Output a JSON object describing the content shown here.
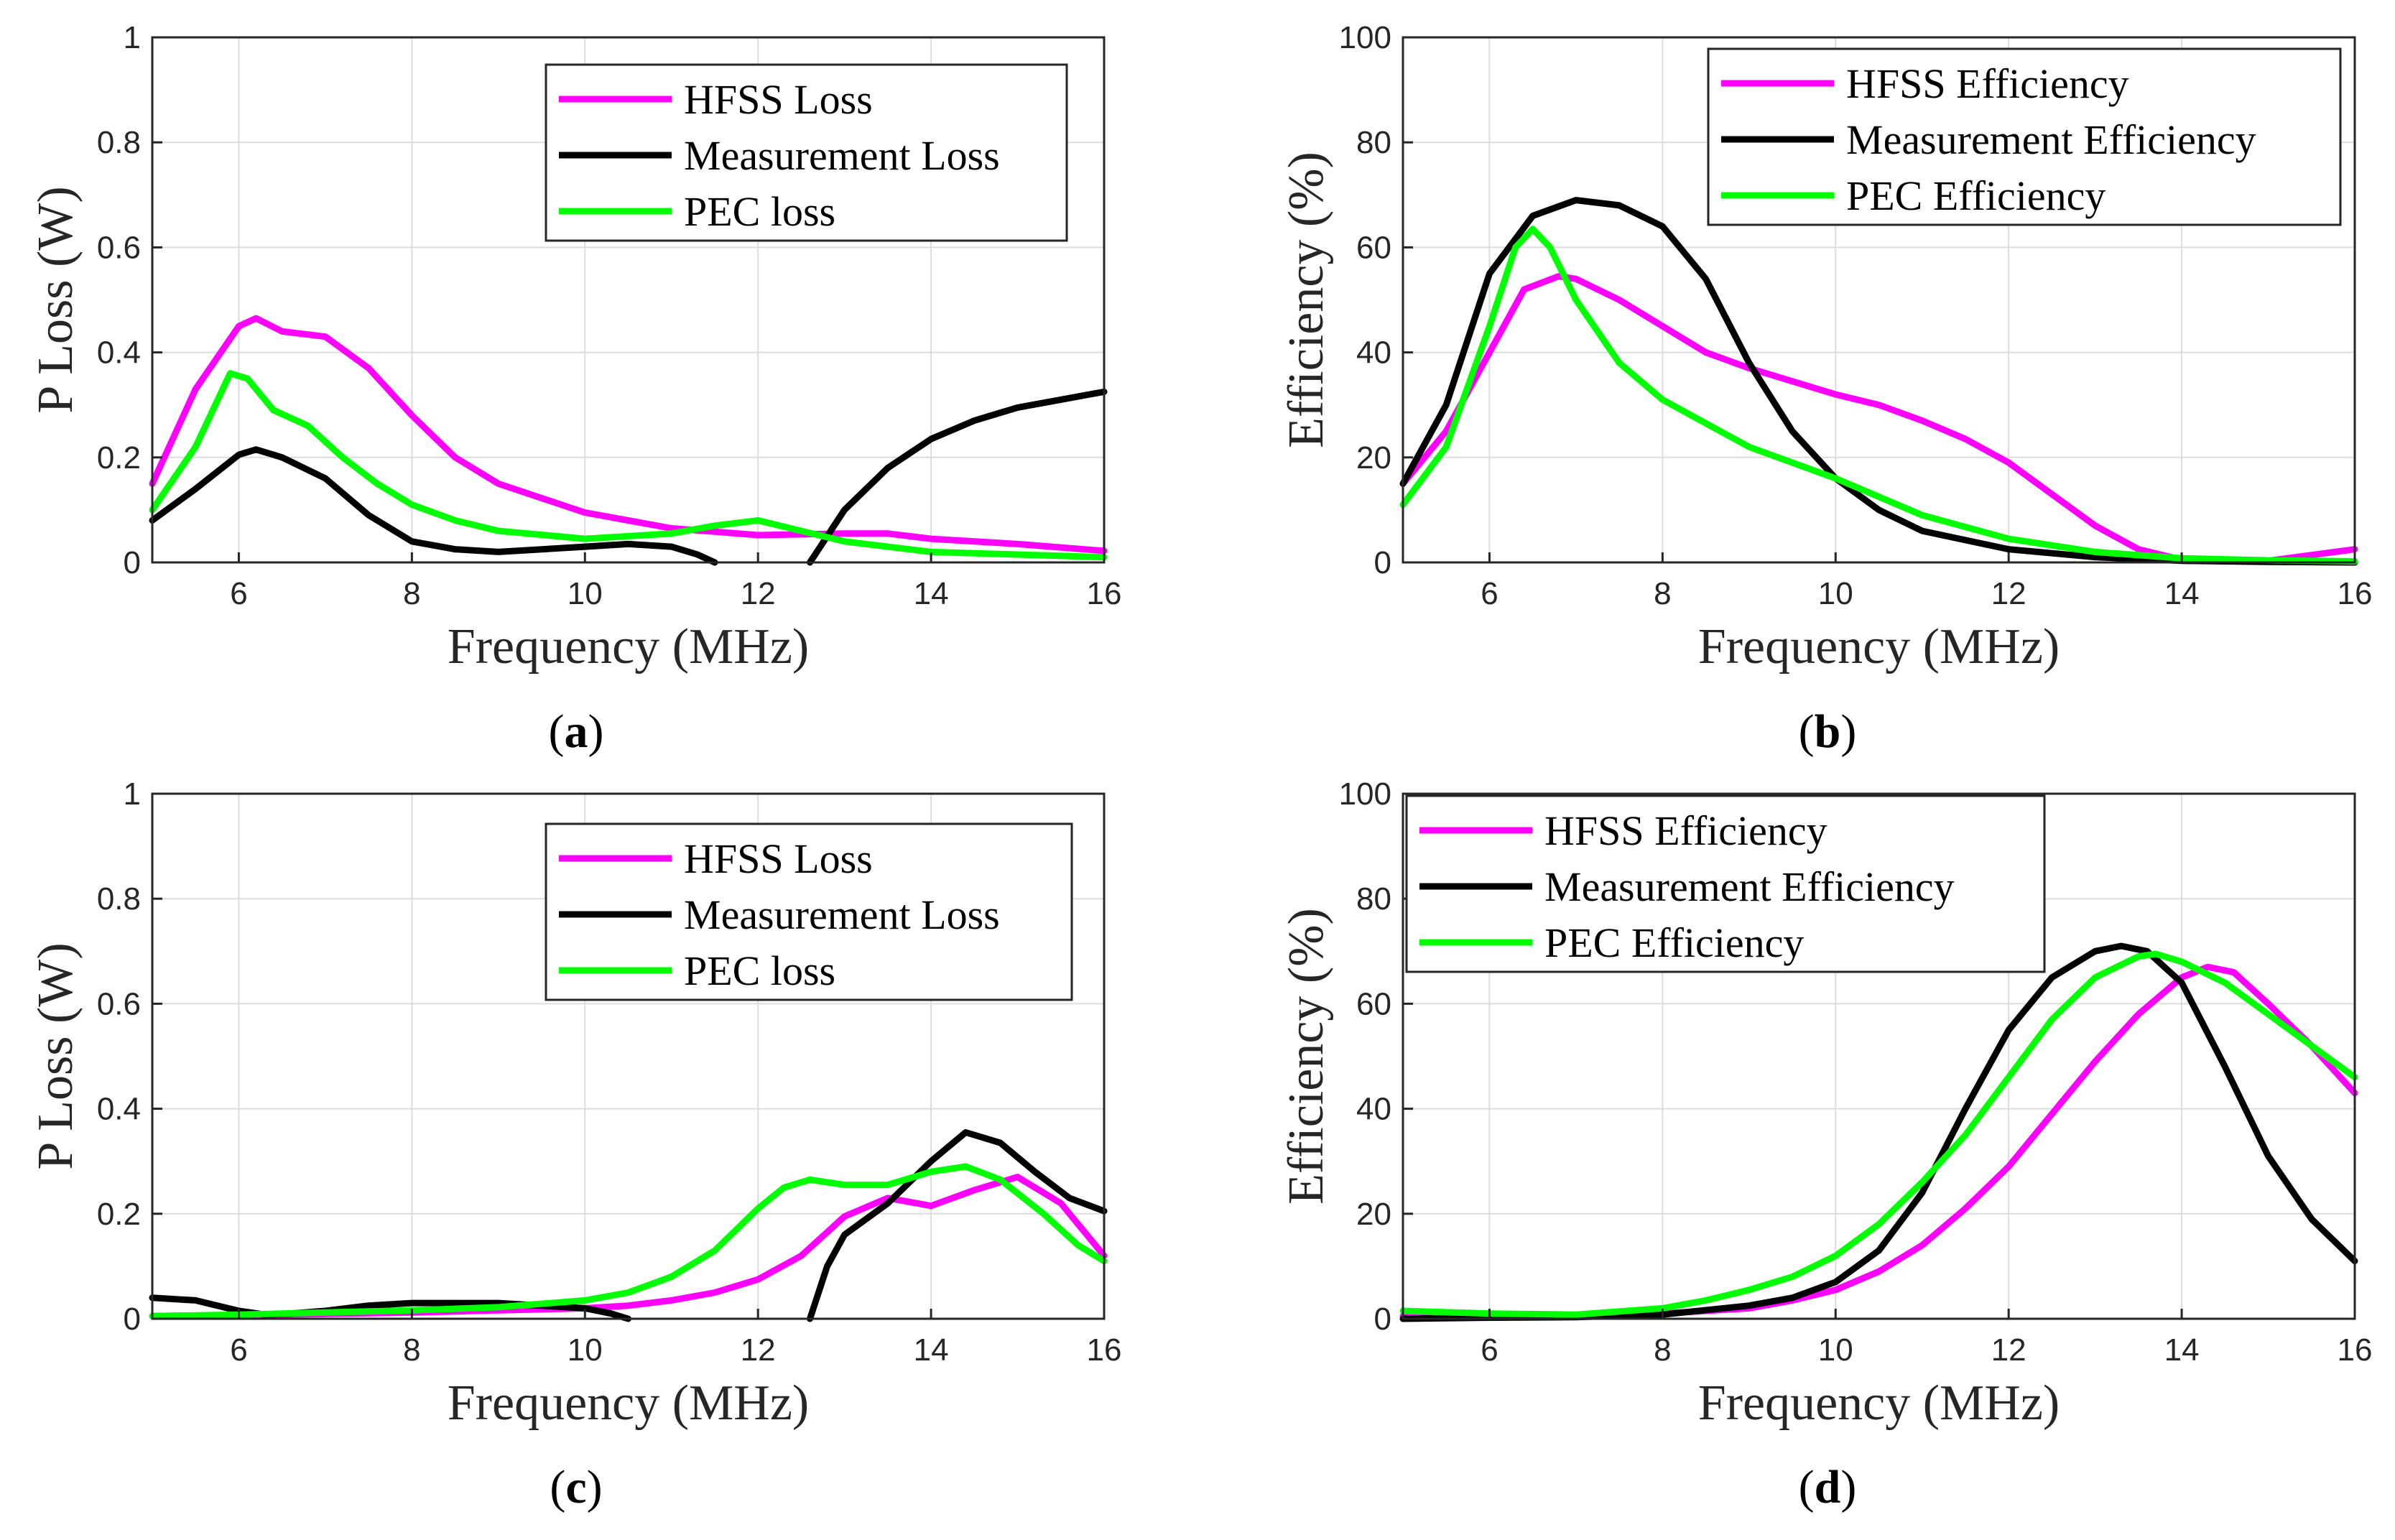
{
  "colors": {
    "hfss": "#ff00ff",
    "measurement": "#000000",
    "pec": "#00ff00",
    "grid": "#dcdcdc",
    "axis": "#262626"
  },
  "chart_data": [
    {
      "type": "line",
      "panel": "a",
      "caption": "a",
      "xlabel": "Frequency (MHz)",
      "ylabel": "P Loss (W)",
      "xlim": [
        5,
        16
      ],
      "ylim": [
        0,
        1
      ],
      "xticks": [
        6,
        8,
        10,
        12,
        14,
        16
      ],
      "yticks": [
        0,
        0.2,
        0.4,
        0.6,
        0.8,
        1
      ],
      "ytick_labels": [
        "0",
        "0.2",
        "0.4",
        "0.6",
        "0.8",
        "1"
      ],
      "legend": "top-right",
      "series": [
        {
          "name": "HFSS Loss",
          "color": "hfss",
          "x": [
            5,
            5.5,
            6,
            6.2,
            6.5,
            7,
            7.5,
            8,
            8.5,
            9,
            10,
            11,
            12,
            13,
            13.5,
            14,
            15,
            16
          ],
          "y": [
            0.15,
            0.33,
            0.45,
            0.465,
            0.44,
            0.43,
            0.37,
            0.28,
            0.2,
            0.15,
            0.095,
            0.065,
            0.052,
            0.055,
            0.055,
            0.045,
            0.035,
            0.022
          ]
        },
        {
          "name": "Measurement Loss",
          "color": "measurement",
          "segments": [
            {
              "x": [
                5,
                5.5,
                6,
                6.2,
                6.5,
                7,
                7.5,
                8,
                8.5,
                9,
                10,
                10.5,
                11,
                11.3,
                11.5
              ],
              "y": [
                0.08,
                0.14,
                0.205,
                0.215,
                0.2,
                0.16,
                0.09,
                0.04,
                0.025,
                0.02,
                0.03,
                0.035,
                0.03,
                0.015,
                0.0
              ]
            },
            {
              "x": [
                12.6,
                12.8,
                13,
                13.5,
                14,
                14.5,
                15,
                15.5,
                16
              ],
              "y": [
                0.0,
                0.05,
                0.1,
                0.18,
                0.235,
                0.27,
                0.295,
                0.31,
                0.325
              ]
            }
          ]
        },
        {
          "name": "PEC loss",
          "color": "pec",
          "x": [
            5,
            5.5,
            5.9,
            6.1,
            6.4,
            6.8,
            7.2,
            7.6,
            8,
            8.5,
            9,
            10,
            11,
            11.5,
            12,
            12.5,
            13,
            14,
            15,
            16
          ],
          "y": [
            0.1,
            0.22,
            0.36,
            0.35,
            0.29,
            0.26,
            0.2,
            0.15,
            0.11,
            0.08,
            0.06,
            0.045,
            0.055,
            0.07,
            0.08,
            0.06,
            0.04,
            0.02,
            0.015,
            0.01
          ]
        }
      ]
    },
    {
      "type": "line",
      "panel": "b",
      "caption": "b",
      "xlabel": "Frequency (MHz)",
      "ylabel": "Efficiency (%)",
      "xlim": [
        5,
        16
      ],
      "ylim": [
        0,
        100
      ],
      "xticks": [
        6,
        8,
        10,
        12,
        14,
        16
      ],
      "yticks": [
        0,
        20,
        40,
        60,
        80,
        100
      ],
      "ytick_labels": [
        "0",
        "20",
        "40",
        "60",
        "80",
        "100"
      ],
      "legend": "top-right",
      "series": [
        {
          "name": "HFSS Efficiency",
          "color": "hfss",
          "x": [
            5,
            5.5,
            6,
            6.4,
            6.8,
            7,
            7.5,
            8,
            8.5,
            9,
            9.5,
            10,
            10.5,
            11,
            11.5,
            12,
            12.5,
            13,
            13.5,
            14,
            14.5,
            15,
            16
          ],
          "y": [
            15,
            25,
            40,
            52,
            54.5,
            54,
            50,
            45,
            40,
            37,
            34.5,
            32,
            30,
            27,
            23.5,
            19,
            13,
            7,
            2.5,
            0.5,
            0.2,
            0.3,
            2.5
          ]
        },
        {
          "name": "Measurement Efficiency",
          "color": "measurement",
          "x": [
            5,
            5.5,
            6,
            6.5,
            7,
            7.5,
            8,
            8.5,
            9,
            9.5,
            10,
            10.5,
            11,
            12,
            13,
            14,
            15,
            16
          ],
          "y": [
            15,
            30,
            55,
            66,
            69,
            68,
            64,
            54,
            38,
            25,
            16,
            10,
            6,
            2.5,
            1,
            0.3,
            0.1,
            0
          ]
        },
        {
          "name": "PEC Efficiency",
          "color": "pec",
          "x": [
            5,
            5.5,
            6,
            6.3,
            6.5,
            6.7,
            7,
            7.5,
            8,
            9,
            10,
            11,
            12,
            13,
            14,
            15,
            16
          ],
          "y": [
            11,
            22,
            45,
            60,
            63.5,
            60,
            50,
            38,
            31,
            22,
            16,
            9,
            4.5,
            2,
            0.8,
            0.4,
            0.2
          ]
        }
      ]
    },
    {
      "type": "line",
      "panel": "c",
      "caption": "c",
      "xlabel": "Frequency (MHz)",
      "ylabel": "P Loss (W)",
      "xlim": [
        5,
        16
      ],
      "ylim": [
        0,
        1
      ],
      "xticks": [
        6,
        8,
        10,
        12,
        14,
        16
      ],
      "yticks": [
        0,
        0.2,
        0.4,
        0.6,
        0.8,
        1
      ],
      "ytick_labels": [
        "0",
        "0.2",
        "0.4",
        "0.6",
        "0.8",
        "1"
      ],
      "legend": "top-right",
      "series": [
        {
          "name": "HFSS Loss",
          "color": "hfss",
          "x": [
            5,
            6,
            7,
            8,
            9,
            10,
            10.5,
            11,
            11.5,
            12,
            12.5,
            13,
            13.5,
            14,
            14.5,
            15,
            15.5,
            16
          ],
          "y": [
            0.005,
            0.007,
            0.009,
            0.012,
            0.016,
            0.02,
            0.025,
            0.035,
            0.05,
            0.075,
            0.12,
            0.195,
            0.23,
            0.215,
            0.245,
            0.27,
            0.22,
            0.12
          ]
        },
        {
          "name": "Measurement Loss",
          "color": "measurement",
          "segments": [
            {
              "x": [
                5,
                5.5,
                6,
                6.3,
                6.6,
                7,
                7.5,
                8,
                8.5,
                9,
                9.5,
                10,
                10.3,
                10.5
              ],
              "y": [
                0.04,
                0.035,
                0.015,
                0.008,
                0.01,
                0.015,
                0.025,
                0.03,
                0.03,
                0.03,
                0.025,
                0.02,
                0.01,
                0.0
              ]
            },
            {
              "x": [
                12.6,
                12.8,
                13,
                13.5,
                14,
                14.4,
                14.8,
                15.2,
                15.6,
                16
              ],
              "y": [
                0.0,
                0.1,
                0.16,
                0.22,
                0.3,
                0.355,
                0.335,
                0.28,
                0.23,
                0.205
              ]
            }
          ]
        },
        {
          "name": "PEC loss",
          "color": "pec",
          "x": [
            5,
            6,
            7,
            8,
            9,
            10,
            10.5,
            11,
            11.5,
            12,
            12.3,
            12.6,
            13,
            13.5,
            14,
            14.4,
            14.8,
            15.3,
            15.7,
            16
          ],
          "y": [
            0.005,
            0.008,
            0.012,
            0.016,
            0.022,
            0.035,
            0.05,
            0.08,
            0.13,
            0.21,
            0.25,
            0.265,
            0.255,
            0.255,
            0.28,
            0.29,
            0.265,
            0.2,
            0.14,
            0.11
          ]
        }
      ]
    },
    {
      "type": "line",
      "panel": "d",
      "caption": "d",
      "xlabel": "Frequency (MHz)",
      "ylabel": "Efficiency (%)",
      "xlim": [
        5,
        16
      ],
      "ylim": [
        0,
        100
      ],
      "xticks": [
        6,
        8,
        10,
        12,
        14,
        16
      ],
      "yticks": [
        0,
        20,
        40,
        60,
        80,
        100
      ],
      "ytick_labels": [
        "0",
        "20",
        "40",
        "60",
        "80",
        "100"
      ],
      "legend": "top-left",
      "series": [
        {
          "name": "HFSS Efficiency",
          "color": "hfss",
          "x": [
            5,
            6,
            7,
            8,
            9,
            9.5,
            10,
            10.5,
            11,
            11.5,
            12,
            12.5,
            13,
            13.5,
            14,
            14.3,
            14.6,
            15,
            15.5,
            16
          ],
          "y": [
            0.5,
            0.5,
            0.5,
            1,
            2,
            3.5,
            5.5,
            9,
            14,
            21,
            29,
            39,
            49,
            58,
            65,
            67,
            66,
            60,
            52,
            43
          ]
        },
        {
          "name": "Measurement Efficiency",
          "color": "measurement",
          "x": [
            5,
            6,
            7,
            8,
            9,
            9.5,
            10,
            10.5,
            11,
            11.5,
            12,
            12.5,
            13,
            13.3,
            13.6,
            14,
            14.5,
            15,
            15.5,
            16
          ],
          "y": [
            0,
            0.2,
            0.3,
            0.8,
            2.5,
            4,
            7,
            13,
            24,
            40,
            55,
            65,
            70,
            71,
            70,
            64,
            48,
            31,
            19,
            11
          ]
        },
        {
          "name": "PEC Efficiency",
          "color": "pec",
          "x": [
            5,
            6,
            7,
            8,
            8.5,
            9,
            9.5,
            10,
            10.5,
            11,
            11.5,
            12,
            12.5,
            13,
            13.5,
            13.7,
            14,
            14.5,
            15,
            15.5,
            16
          ],
          "y": [
            1.5,
            1,
            0.8,
            2,
            3.5,
            5.5,
            8,
            12,
            18,
            26,
            35,
            46,
            57,
            65,
            69,
            69.5,
            68,
            64,
            58,
            52,
            46
          ]
        }
      ]
    }
  ]
}
